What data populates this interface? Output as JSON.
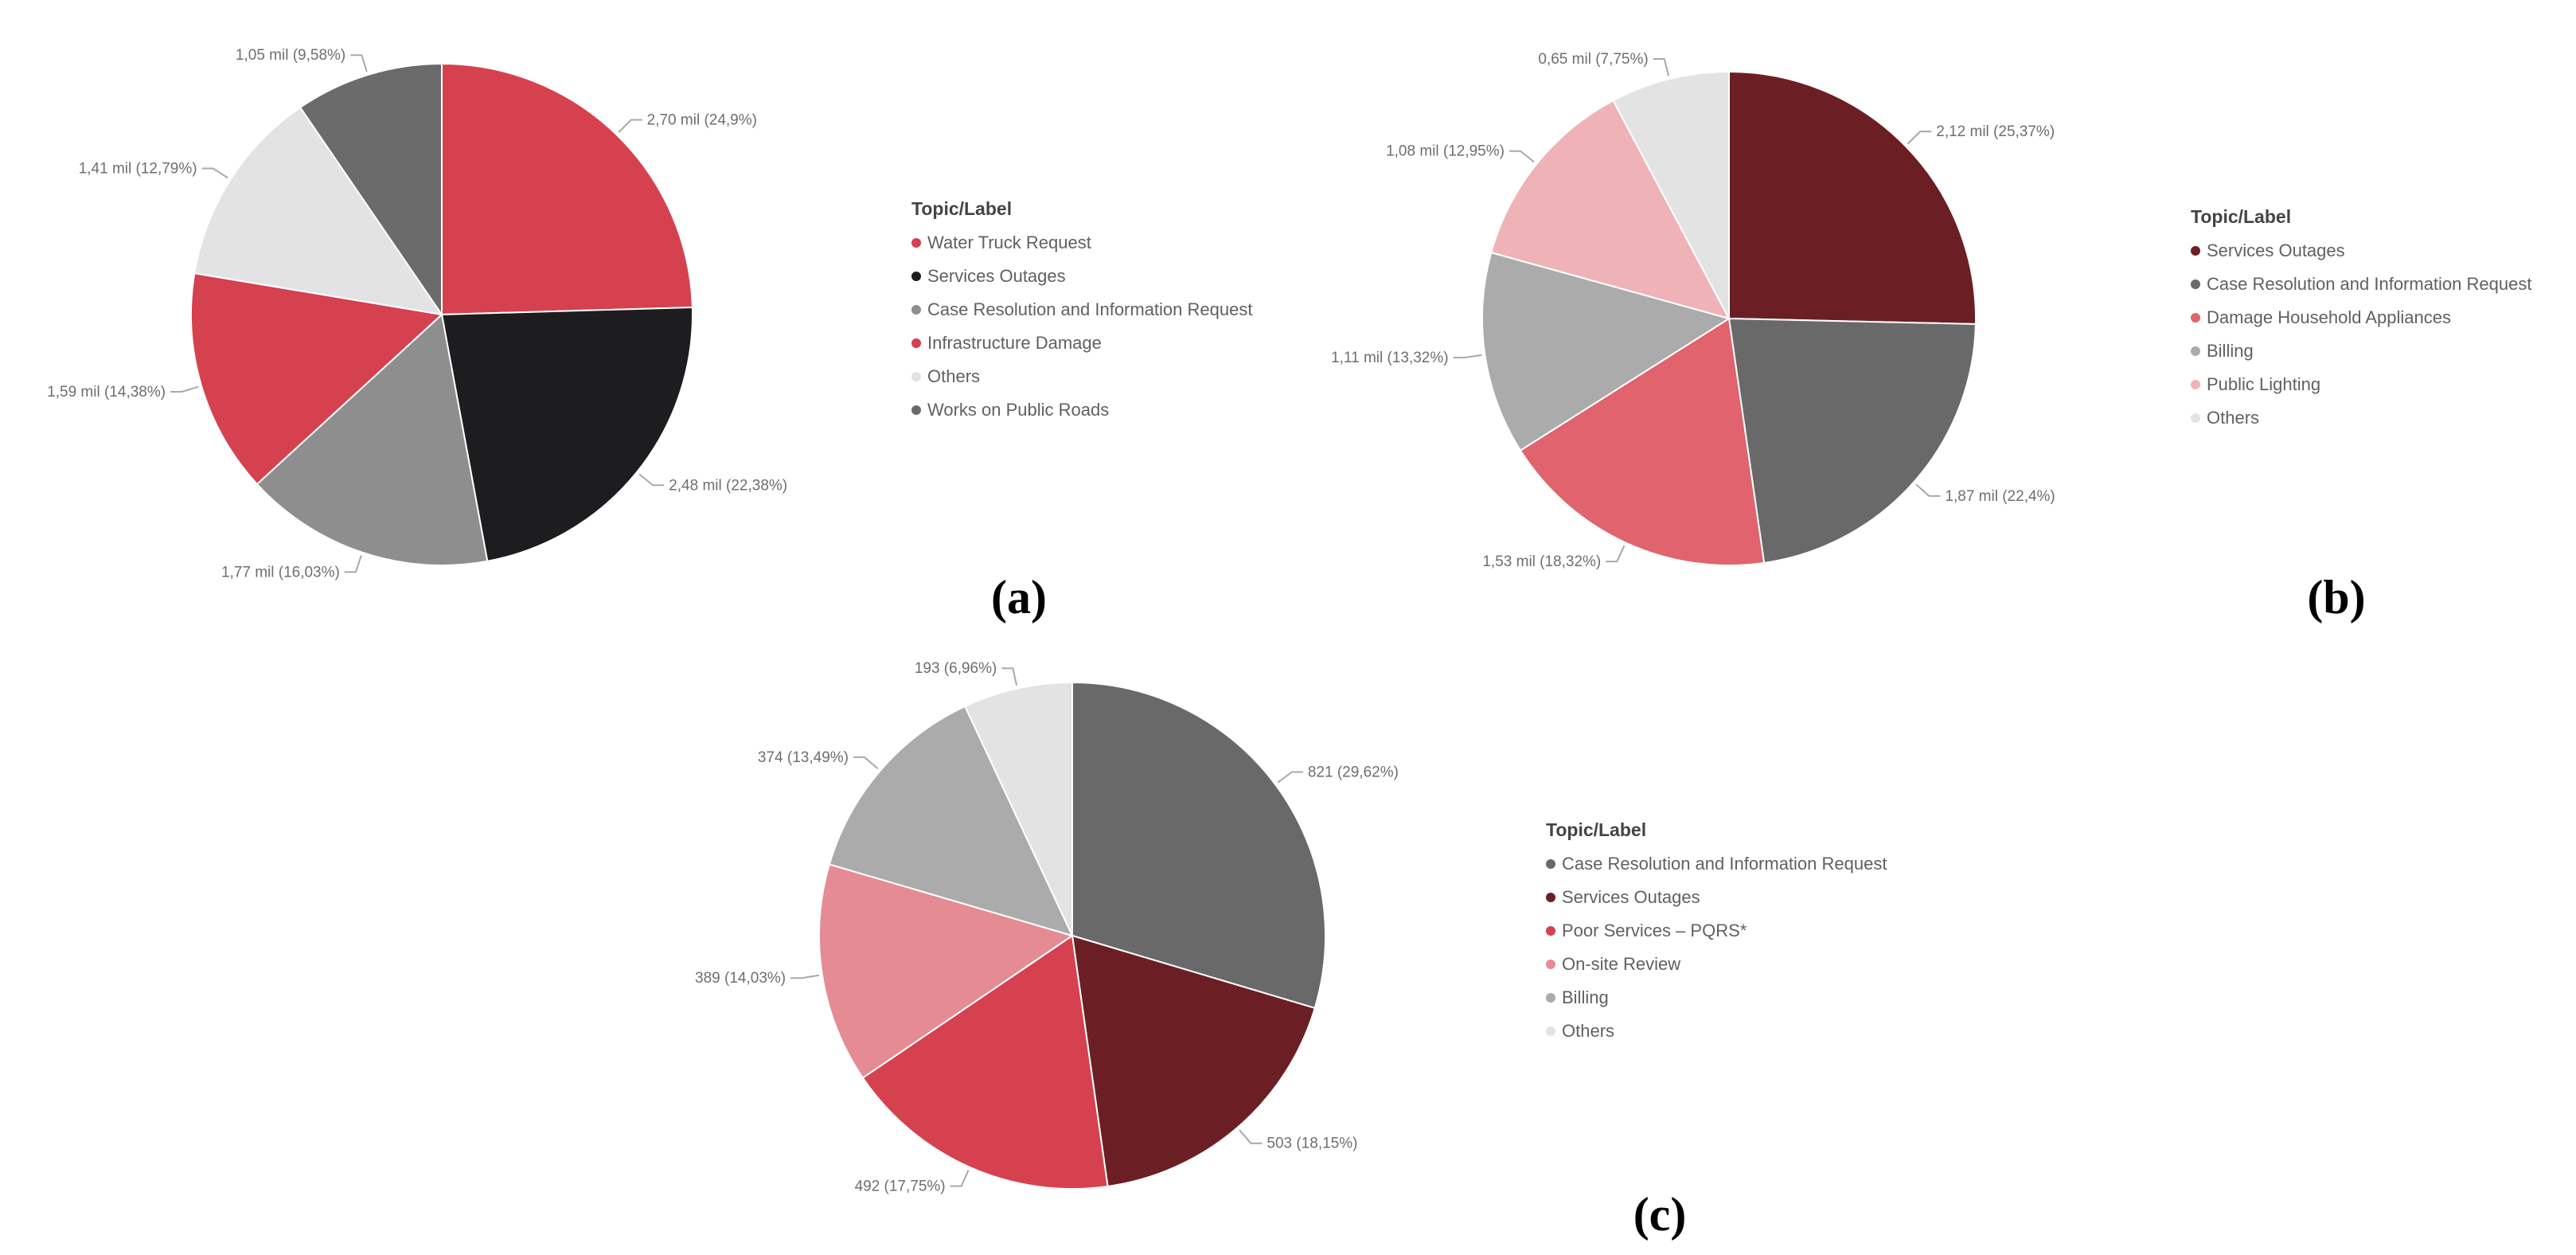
{
  "chart_data": [
    {
      "type": "pie",
      "panel_label": "(a)",
      "legend_title": "Topic/Label",
      "slices": [
        {
          "name": "Water Truck Request",
          "value": 2.7,
          "label": "2,70 mil (24,9%)",
          "color": "#d6414f"
        },
        {
          "name": "Services Outages",
          "value": 2.48,
          "label": "2,48 mil (22,38%)",
          "color": "#1d1d1f"
        },
        {
          "name": "Case Resolution and Information Request",
          "value": 1.77,
          "label": "1,77 mil (16,03%)",
          "color": "#8e8e8e"
        },
        {
          "name": "Infrastructure Damage",
          "value": 1.59,
          "label": "1,59 mil (14,38%)",
          "color": "#d6414f"
        },
        {
          "name": "Others",
          "value": 1.41,
          "label": "1,41 mil (12,79%)",
          "color": "#e3e3e3"
        },
        {
          "name": "Works on Public Roads",
          "value": 1.05,
          "label": "1,05 mil (9,58%)",
          "color": "#6b6b6b"
        }
      ],
      "legend": [
        "Water Truck Request",
        "Services Outages",
        "Case Resolution and Information Request",
        "Infrastructure Damage",
        "Others",
        "Works on Public Roads"
      ]
    },
    {
      "type": "pie",
      "panel_label": "(b)",
      "legend_title": "Topic/Label",
      "slices": [
        {
          "name": "Services Outages",
          "value": 2.12,
          "label": "2,12 mil (25,37%)",
          "color": "#6b1f24"
        },
        {
          "name": "Case Resolution and Information Request",
          "value": 1.87,
          "label": "1,87 mil (22,4%)",
          "color": "#696969"
        },
        {
          "name": "Damage Household Appliances",
          "value": 1.53,
          "label": "1,53 mil (18,32%)",
          "color": "#e0636e"
        },
        {
          "name": "Billing",
          "value": 1.11,
          "label": "1,11 mil (13,32%)",
          "color": "#ababab"
        },
        {
          "name": "Public Lighting",
          "value": 1.08,
          "label": "1,08 mil (12,95%)",
          "color": "#efb3b7"
        },
        {
          "name": "Others",
          "value": 0.65,
          "label": "0,65 mil (7,75%)",
          "color": "#e3e3e3"
        }
      ],
      "legend": [
        "Services Outages",
        "Case Resolution and Information Request",
        "Damage Household Appliances",
        "Billing",
        "Public Lighting",
        "Others"
      ]
    },
    {
      "type": "pie",
      "panel_label": "(c)",
      "legend_title": "Topic/Label",
      "slices": [
        {
          "name": "Case Resolution and Information Request",
          "value": 821,
          "label": "821 (29,62%)",
          "color": "#696969"
        },
        {
          "name": "Services Outages",
          "value": 503,
          "label": "503 (18,15%)",
          "color": "#6b1f24"
        },
        {
          "name": "Poor Services – PQRS*",
          "value": 492,
          "label": "492 (17,75%)",
          "color": "#d6414f"
        },
        {
          "name": "On-site Review",
          "value": 389,
          "label": "389 (14,03%)",
          "color": "#e58b93"
        },
        {
          "name": "Billing",
          "value": 374,
          "label": "374 (13,49%)",
          "color": "#ababab"
        },
        {
          "name": "Others",
          "value": 193,
          "label": "193 (6,96%)",
          "color": "#e3e3e3"
        }
      ],
      "legend": [
        "Case Resolution and Information Request",
        "Services Outages",
        "Poor Services – PQRS*",
        "On-site Review",
        "Billing",
        "Others"
      ]
    }
  ]
}
